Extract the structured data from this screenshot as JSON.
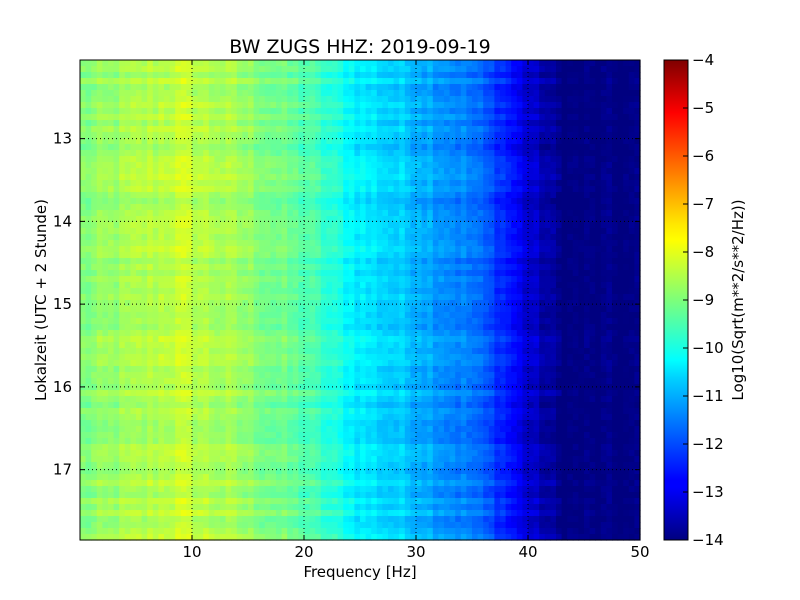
{
  "chart_data": {
    "type": "heatmap",
    "title": "BW ZUGS HHZ: 2019-09-19",
    "xlabel": "Frequency [Hz]",
    "ylabel": "Lokalzeit (UTC + 2 Stunde)",
    "xlim": [
      0,
      50
    ],
    "ylim": [
      12.05,
      17.85
    ],
    "y_inverted": true,
    "xticks": [
      10,
      20,
      30,
      40,
      50
    ],
    "yticks": [
      13,
      14,
      15,
      16,
      17
    ],
    "grid": true,
    "colormap": "jet",
    "colorbar": {
      "label": "Log10(Sqrt(m**2/s**2/Hz))",
      "min": -14,
      "max": -4,
      "ticks": [
        -4,
        -5,
        -6,
        -7,
        -8,
        -9,
        -10,
        -11,
        -12,
        -13,
        -14
      ]
    },
    "z_profile_by_frequency": {
      "frequency_hz": [
        0,
        5,
        9,
        15,
        20,
        25,
        30,
        35,
        38,
        40,
        42,
        43,
        50
      ],
      "log10_amplitude": [
        -9.0,
        -8.6,
        -8.3,
        -8.8,
        -9.4,
        -10.4,
        -10.9,
        -11.6,
        -12.4,
        -13.2,
        -13.7,
        -14.0,
        -14.0
      ]
    }
  }
}
